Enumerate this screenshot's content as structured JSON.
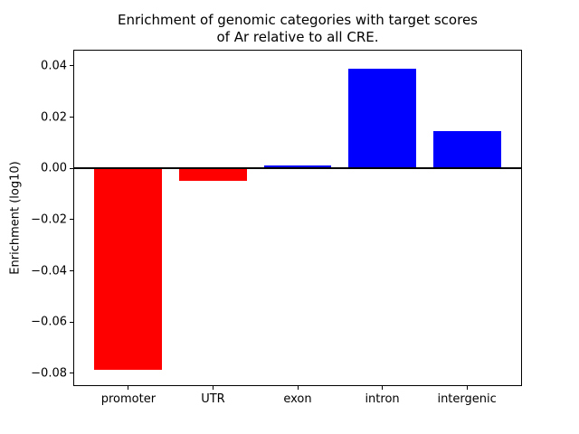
{
  "chart_data": {
    "type": "bar",
    "title": "Enrichment of genomic categories with target scores of Ar relative to all CRE.",
    "title_lines": [
      "Enrichment of genomic categories with target scores",
      "of Ar relative to all CRE."
    ],
    "xlabel": "",
    "ylabel": "Enrichment (log10)",
    "categories": [
      "promoter",
      "UTR",
      "exon",
      "intron",
      "intergenic"
    ],
    "values": [
      -0.0785,
      -0.005,
      0.001,
      0.039,
      0.0145
    ],
    "colors": [
      "#ff0000",
      "#ff0000",
      "#0000ff",
      "#0000ff",
      "#0000ff"
    ],
    "negative_color": "#ff0000",
    "positive_color": "#0000ff",
    "yticks": [
      0.04,
      0.02,
      0.0,
      -0.02,
      -0.04,
      -0.06,
      -0.08
    ],
    "ytick_labels": [
      "0.04",
      "0.02",
      "0.00",
      "−0.02",
      "−0.04",
      "−0.06",
      "−0.08"
    ],
    "ylim": [
      -0.0846,
      0.046
    ],
    "xlim": [
      -0.64,
      4.64
    ],
    "bar_width": 0.8,
    "grid": false,
    "legend": "none",
    "zero_line": true
  }
}
